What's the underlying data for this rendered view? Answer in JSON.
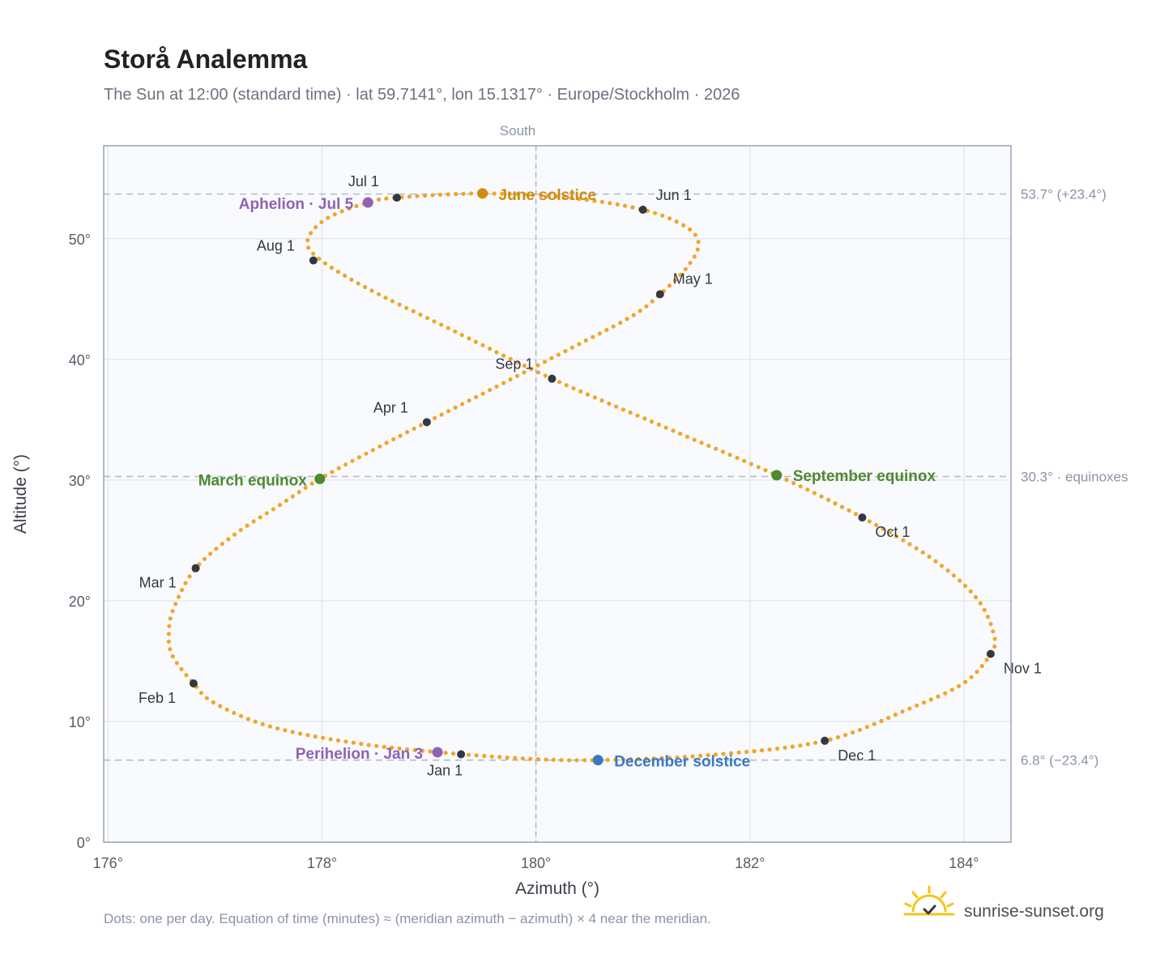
{
  "title": "Storå Analemma",
  "subtitle": "The Sun at 12:00 (standard time) · lat 59.7141°, lon 15.1317° · Europe/Stockholm · 2026",
  "south_label": "South",
  "footnote": "Dots: one per day. Equation of time (minutes) ≈ (meridian azimuth − azimuth) × 4 near the meridian.",
  "brand": {
    "name": "sunrise-sunset.org",
    "icon": "sun-check-icon"
  },
  "colors": {
    "curve": "#f2a52a",
    "month_dot": "#333842",
    "equinox": "#4e8a2e",
    "june_solstice": "#d08c10",
    "december_solstice": "#3a78c0",
    "aphelion_perihelion": "#8e62b4",
    "plot_bg": "#f8fafd",
    "grid": "#e1e6ec",
    "frame": "#9aa4b2"
  },
  "chart_data": {
    "type": "scatter",
    "title": "Storå Analemma",
    "xlabel": "Azimuth (°)",
    "ylabel": "Altitude (°)",
    "xlim": [
      175.96,
      184.44
    ],
    "ylim": [
      0,
      57.7
    ],
    "x_ticks": [
      176,
      178,
      180,
      182,
      184
    ],
    "x_tick_labels": [
      "176°",
      "178°",
      "180°",
      "182°",
      "184°"
    ],
    "y_ticks": [
      0,
      10,
      20,
      30,
      40,
      50
    ],
    "y_tick_labels": [
      "0°",
      "10°",
      "20°",
      "30°",
      "40°",
      "50°"
    ],
    "grid": true,
    "meridian_azimuth": 180,
    "reference_lines": [
      {
        "altitude": 53.7,
        "label": "53.7° (+23.4°)"
      },
      {
        "altitude": 30.3,
        "label": "30.3° · equinoxes"
      },
      {
        "altitude": 6.8,
        "label": "6.8° (−23.4°)"
      }
    ],
    "curve_anchors": [
      {
        "az": 179.3,
        "alt": 7.28
      },
      {
        "az": 178.4,
        "alt": 8.1
      },
      {
        "az": 177.55,
        "alt": 9.5
      },
      {
        "az": 177.0,
        "alt": 11.5
      },
      {
        "az": 176.8,
        "alt": 13.15
      },
      {
        "az": 176.6,
        "alt": 15.5
      },
      {
        "az": 176.57,
        "alt": 17.5
      },
      {
        "az": 176.62,
        "alt": 19.5
      },
      {
        "az": 176.82,
        "alt": 22.7
      },
      {
        "az": 177.2,
        "alt": 25.6
      },
      {
        "az": 177.6,
        "alt": 27.9
      },
      {
        "az": 177.98,
        "alt": 30.1
      },
      {
        "az": 178.5,
        "alt": 32.6
      },
      {
        "az": 178.98,
        "alt": 34.8
      },
      {
        "az": 179.6,
        "alt": 37.6
      },
      {
        "az": 180.3,
        "alt": 40.8
      },
      {
        "az": 180.9,
        "alt": 43.6
      },
      {
        "az": 181.16,
        "alt": 45.4
      },
      {
        "az": 181.4,
        "alt": 47.5
      },
      {
        "az": 181.52,
        "alt": 49.5
      },
      {
        "az": 181.4,
        "alt": 51.0
      },
      {
        "az": 181.0,
        "alt": 52.4
      },
      {
        "az": 180.3,
        "alt": 53.4
      },
      {
        "az": 179.5,
        "alt": 53.75
      },
      {
        "az": 178.7,
        "alt": 53.4
      },
      {
        "az": 178.43,
        "alt": 53.0
      },
      {
        "az": 178.05,
        "alt": 51.7
      },
      {
        "az": 177.87,
        "alt": 50.0
      },
      {
        "az": 177.95,
        "alt": 48.5
      },
      {
        "az": 178.4,
        "alt": 46.0
      },
      {
        "az": 179.2,
        "alt": 42.5
      },
      {
        "az": 180.15,
        "alt": 38.4
      },
      {
        "az": 181.2,
        "alt": 34.4
      },
      {
        "az": 182.25,
        "alt": 30.4
      },
      {
        "az": 183.05,
        "alt": 26.9
      },
      {
        "az": 183.7,
        "alt": 23.5
      },
      {
        "az": 184.12,
        "alt": 20.2
      },
      {
        "az": 184.28,
        "alt": 17.2
      },
      {
        "az": 184.25,
        "alt": 15.6
      },
      {
        "az": 184.0,
        "alt": 13.2
      },
      {
        "az": 183.5,
        "alt": 11.1
      },
      {
        "az": 182.7,
        "alt": 8.4
      },
      {
        "az": 181.6,
        "alt": 7.2
      },
      {
        "az": 180.58,
        "alt": 6.8
      },
      {
        "az": 179.95,
        "alt": 6.9
      },
      {
        "az": 179.3,
        "alt": 7.28
      }
    ],
    "month_markers": [
      {
        "label": "Jan 1",
        "az": 179.3,
        "alt": 7.28
      },
      {
        "label": "Feb 1",
        "az": 176.8,
        "alt": 13.15
      },
      {
        "label": "Mar 1",
        "az": 176.82,
        "alt": 22.7
      },
      {
        "label": "Apr 1",
        "az": 178.98,
        "alt": 34.8
      },
      {
        "label": "May 1",
        "az": 181.16,
        "alt": 45.4
      },
      {
        "label": "Jun 1",
        "az": 181.0,
        "alt": 52.4
      },
      {
        "label": "Jul 1",
        "az": 178.7,
        "alt": 53.4
      },
      {
        "label": "Aug 1",
        "az": 177.92,
        "alt": 48.2
      },
      {
        "label": "Sep 1",
        "az": 180.15,
        "alt": 38.4
      },
      {
        "label": "Oct 1",
        "az": 183.05,
        "alt": 26.9
      },
      {
        "label": "Nov 1",
        "az": 184.25,
        "alt": 15.6
      },
      {
        "label": "Dec 1",
        "az": 182.7,
        "alt": 8.4
      }
    ],
    "events": [
      {
        "label": "March equinox",
        "az": 177.98,
        "alt": 30.1,
        "color": "#4e8a2e"
      },
      {
        "label": "June solstice",
        "az": 179.5,
        "alt": 53.75,
        "color": "#d08c10"
      },
      {
        "label": "September equinox",
        "az": 182.25,
        "alt": 30.4,
        "color": "#4e8a2e"
      },
      {
        "label": "December solstice",
        "az": 180.58,
        "alt": 6.8,
        "color": "#3a78c0"
      },
      {
        "label": "Aphelion · Jul 5",
        "az": 178.43,
        "alt": 53.0,
        "color": "#8e62b4"
      },
      {
        "label": "Perihelion · Jan 3",
        "az": 179.08,
        "alt": 7.45,
        "color": "#8e62b4"
      }
    ]
  }
}
